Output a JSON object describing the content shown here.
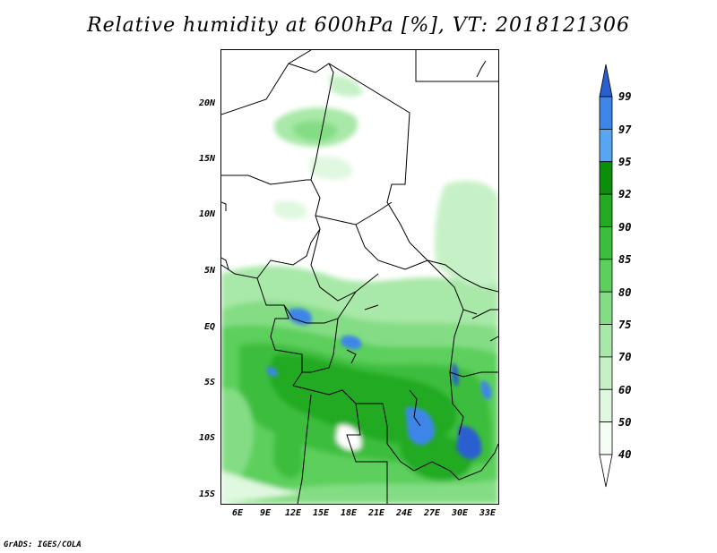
{
  "title": "Relative humidity at 600hPa [%], VT: 2018121306",
  "footer": "GrADS: IGES/COLA",
  "y_labels": [
    "20N",
    "15N",
    "10N",
    "5N",
    "EQ",
    "5S",
    "10S",
    "15S"
  ],
  "x_labels": [
    "6E",
    "9E",
    "12E",
    "15E",
    "18E",
    "21E",
    "24E",
    "27E",
    "30E",
    "33E"
  ],
  "colorbar": {
    "levels": [
      "99",
      "97",
      "95",
      "92",
      "90",
      "85",
      "80",
      "75",
      "70",
      "60",
      "50",
      "40"
    ],
    "colors": [
      "#2a5fd0",
      "#3d86e8",
      "#58a6f2",
      "#0b8f0b",
      "#22aa22",
      "#3cbd3c",
      "#5ccf5c",
      "#84dd84",
      "#a8e8a8",
      "#c6f1c6",
      "#dff8df",
      "#f3fdf3",
      "#ffffff"
    ]
  }
}
